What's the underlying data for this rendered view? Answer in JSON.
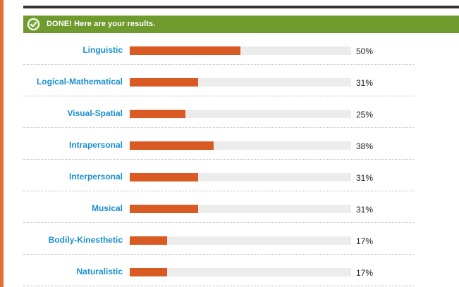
{
  "banner": {
    "text": "DONE! Here are your results.",
    "icon": "check-icon",
    "color": "#6f9a2e"
  },
  "colors": {
    "accent": "#e07033",
    "bar_fill": "#d95a22",
    "bar_track": "#ececec",
    "label": "#1a8fcf"
  },
  "results": [
    {
      "label": "Linguistic",
      "value": 50,
      "display": "50%"
    },
    {
      "label": "Logical-Mathematical",
      "value": 31,
      "display": "31%"
    },
    {
      "label": "Visual-Spatial",
      "value": 25,
      "display": "25%"
    },
    {
      "label": "Intrapersonal",
      "value": 38,
      "display": "38%"
    },
    {
      "label": "Interpersonal",
      "value": 31,
      "display": "31%"
    },
    {
      "label": "Musical",
      "value": 31,
      "display": "31%"
    },
    {
      "label": "Bodily-Kinesthetic",
      "value": 17,
      "display": "17%"
    },
    {
      "label": "Naturalistic",
      "value": 17,
      "display": "17%"
    }
  ]
}
